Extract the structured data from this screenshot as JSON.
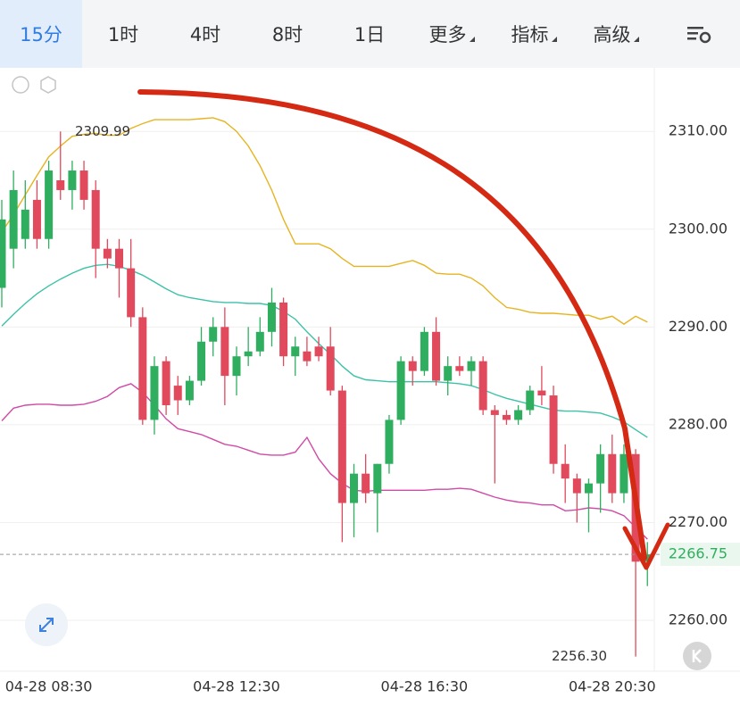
{
  "tabs": [
    "15分",
    "1时",
    "4时",
    "8时",
    "1日",
    "更多",
    "指标",
    "高级"
  ],
  "chart_data": {
    "type": "candlestick",
    "categories": [
      null,
      null,
      null,
      null,
      "04-28 08:30",
      null,
      null,
      null,
      null,
      null,
      null,
      null,
      null,
      null,
      null,
      null,
      null,
      null,
      null,
      null,
      "04-28 12:30",
      null,
      null,
      null,
      null,
      null,
      null,
      null,
      null,
      null,
      null,
      null,
      null,
      null,
      null,
      null,
      "04-28 16:30",
      null,
      null,
      null,
      null,
      null,
      null,
      null,
      null,
      null,
      null,
      null,
      null,
      null,
      null,
      null,
      "04-28 20:30",
      null,
      null,
      null
    ],
    "open": [
      2294,
      2298,
      2299,
      2303,
      2299,
      2305,
      2304,
      2306,
      2304,
      2298,
      2298,
      2296,
      2291,
      2280.5,
      2286.5,
      2284,
      2282.5,
      2284.5,
      2288.5,
      2290,
      2285,
      2287,
      2287.5,
      2289.5,
      2292.5,
      2287,
      2287.5,
      2288,
      2288,
      2283.5,
      2272,
      2275,
      2273,
      2276,
      2280.5,
      2286.5,
      2285.5,
      2289.5,
      2284.5,
      2286,
      2285.5,
      2286.5,
      2281.5,
      2281,
      2280.5,
      2281.5,
      2283.5,
      2283,
      2276,
      2274.5,
      2273,
      2274,
      2277,
      2273,
      2277,
      2266
    ],
    "high": [
      2303,
      2306,
      2305,
      2305,
      2307,
      2309.99,
      2307,
      2307,
      2305,
      2299,
      2299,
      2299,
      2292,
      2287,
      2287,
      2285,
      2285,
      2290,
      2291,
      2292,
      2288,
      2290,
      2291,
      2294,
      2293,
      2289,
      2289,
      2289,
      2290,
      2284,
      2276,
      2277,
      2276,
      2281,
      2287,
      2287,
      2290,
      2291,
      2287,
      2287,
      2287,
      2287,
      2282,
      2281.5,
      2282,
      2284,
      2286,
      2284,
      2278,
      2275,
      2274.5,
      2278,
      2279,
      2278,
      2277.5,
      2268
    ],
    "low": [
      2292,
      2296,
      2298,
      2298,
      2298,
      2303,
      2302,
      2302,
      2295,
      2296,
      2293,
      2290,
      2280,
      2279,
      2281,
      2281,
      2282,
      2284,
      2287,
      2282,
      2283,
      2286,
      2287,
      2288,
      2286,
      2285,
      2286,
      2286.5,
      2283,
      2268,
      2268.5,
      2272,
      2269,
      2275,
      2280,
      2284,
      2285,
      2284,
      2283,
      2285,
      2284,
      2281,
      2274,
      2280,
      2280,
      2281,
      2282,
      2275,
      2272,
      2270,
      2269,
      2271,
      2272,
      2272,
      2256.3,
      2263.5
    ],
    "close": [
      2301,
      2304,
      2302,
      2299,
      2306,
      2304,
      2306,
      2303,
      2298,
      2297,
      2296,
      2291,
      2280.5,
      2286,
      2282,
      2282.5,
      2284.5,
      2288.5,
      2290,
      2285,
      2287,
      2287.5,
      2289.5,
      2292.5,
      2287,
      2288,
      2286.5,
      2287,
      2283.5,
      2272,
      2275,
      2273,
      2276,
      2280.5,
      2286.5,
      2285.5,
      2289.5,
      2284.5,
      2286,
      2285.5,
      2286.5,
      2281.5,
      2281,
      2280.5,
      2281.5,
      2283.5,
      2283,
      2276,
      2274.5,
      2273,
      2274,
      2277,
      2273,
      2277,
      2266,
      2266.75
    ],
    "up_color": "#2fae5f",
    "down_color": "#e14a5c",
    "bands": [
      {
        "color": "#e6b420",
        "values": [
          2299.7,
          2301.5,
          2303.5,
          2305.5,
          2307.4,
          2308.5,
          2309.5,
          2309.7,
          2309.8,
          2309.6,
          2309.6,
          2310.3,
          2310.8,
          2311.2,
          2311.2,
          2311.2,
          2311.2,
          2311.3,
          2311.4,
          2311.0,
          2310.0,
          2308.5,
          2306.5,
          2304,
          2301,
          2298.5,
          2298.5,
          2298.5,
          2298,
          2297,
          2296.2,
          2296.2,
          2296.2,
          2296.2,
          2296.5,
          2296.8,
          2296.3,
          2295.5,
          2295.4,
          2295.4,
          2295,
          2294.2,
          2293,
          2292,
          2291.8,
          2291.5,
          2291.4,
          2291.4,
          2291.3,
          2291.2,
          2291.2,
          2290.8,
          2291.1,
          2290.3,
          2291.1,
          2290.5
        ]
      },
      {
        "color": "#3cc2a8",
        "values": [
          2290.1,
          2291.3,
          2292.4,
          2293.4,
          2294.2,
          2294.9,
          2295.5,
          2296.0,
          2296.3,
          2296.4,
          2296.2,
          2295.8,
          2295.3,
          2294.6,
          2293.9,
          2293.3,
          2293.0,
          2292.8,
          2292.6,
          2292.5,
          2292.5,
          2292.4,
          2292.4,
          2292.2,
          2291.6,
          2290.8,
          2289.5,
          2288.3,
          2287.2,
          2286.0,
          2285.0,
          2284.6,
          2284.5,
          2284.4,
          2284.4,
          2284.4,
          2284.4,
          2284.4,
          2284.3,
          2284.2,
          2284.0,
          2283.6,
          2283.1,
          2282.7,
          2282.4,
          2282.1,
          2281.8,
          2281.5,
          2281.4,
          2281.4,
          2281.3,
          2281.2,
          2280.8,
          2280.3,
          2279.5,
          2278.7
        ]
      },
      {
        "color": "#d04aa7",
        "values": [
          2280.4,
          2281.7,
          2282.0,
          2282.1,
          2282.1,
          2282.0,
          2282.0,
          2282.1,
          2282.4,
          2282.9,
          2283.8,
          2284.2,
          2283.3,
          2282.0,
          2280.6,
          2279.6,
          2279.3,
          2279.0,
          2278.5,
          2278.0,
          2277.8,
          2277.4,
          2277.0,
          2276.9,
          2276.9,
          2277.2,
          2278.7,
          2276.5,
          2275.0,
          2274.0,
          2273.3,
          2273.2,
          2273.3,
          2273.3,
          2273.3,
          2273.3,
          2273.3,
          2273.4,
          2273.4,
          2273.5,
          2273.4,
          2273.0,
          2272.6,
          2272.3,
          2272.1,
          2272.0,
          2271.8,
          2271.8,
          2271.2,
          2271.3,
          2271.5,
          2271.4,
          2271.2,
          2270.7,
          2269.5,
          2268.3
        ]
      }
    ],
    "ylim": [
      2254.8,
      2316.5
    ],
    "yticks": [
      {
        "value": 2260,
        "label": "2260.00"
      },
      {
        "value": 2270,
        "label": "2270.00"
      },
      {
        "value": 2280,
        "label": "2280.00"
      },
      {
        "value": 2290,
        "label": "2290.00"
      },
      {
        "value": 2300,
        "label": "2300.00"
      },
      {
        "value": 2310,
        "label": "2310.00"
      }
    ],
    "grid": true,
    "high_marker": 2309.99,
    "low_marker": {
      "value": 2256.3,
      "label": "2256.30"
    },
    "last_price": {
      "value": 2266.75,
      "label": "2266.75"
    }
  }
}
